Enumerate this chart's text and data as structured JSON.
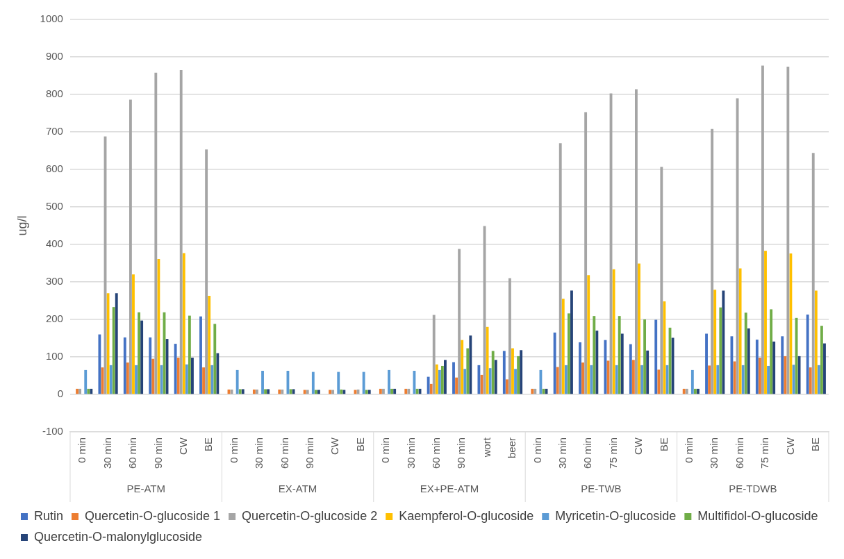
{
  "chart_data": {
    "type": "bar",
    "ylabel": "ug/l",
    "categories": [
      "0 min",
      "30 min",
      "60 min",
      "90 min",
      "CW",
      "BE",
      "0 min",
      "30 min",
      "60 min",
      "90 min",
      "CW",
      "BE",
      "0 min",
      "30 min",
      "60 min",
      "90 min",
      "wort",
      "beer",
      "0 min",
      "30 min",
      "60 min",
      "75 min",
      "CW",
      "BE",
      "0 min",
      "30 min",
      "60 min",
      "75 min",
      "CW",
      "BE"
    ],
    "annotations": [
      "PE-ATM",
      "EX-ATM",
      "EX+PE-ATM",
      "PE-TWB",
      "PE-TDWB"
    ],
    "series": [
      {
        "name": "Rutin",
        "color": "#4472c4",
        "values": [
          0,
          160,
          152,
          152,
          135,
          208,
          0,
          0,
          0,
          0,
          0,
          0,
          0,
          0,
          47,
          86,
          78,
          116,
          0,
          165,
          139,
          145,
          134,
          199,
          0,
          162,
          155,
          146,
          155,
          213
        ]
      },
      {
        "name": "Quercetin-O-glucoside 1",
        "color": "#ed7d31",
        "values": [
          15,
          72,
          85,
          95,
          98,
          72,
          13,
          13,
          13,
          12,
          12,
          12,
          15,
          15,
          28,
          45,
          52,
          40,
          15,
          73,
          85,
          90,
          92,
          66,
          15,
          77,
          88,
          98,
          102,
          72
        ]
      },
      {
        "name": "Quercetin-O-glucoside 2",
        "color": "#a5a5a5",
        "values": [
          15,
          688,
          786,
          858,
          865,
          653,
          13,
          13,
          13,
          12,
          12,
          13,
          15,
          15,
          212,
          388,
          449,
          310,
          15,
          670,
          753,
          803,
          814,
          607,
          15,
          708,
          790,
          877,
          874,
          644
        ]
      },
      {
        "name": "Kaempferol-O-glucoside",
        "color": "#ffc000",
        "values": [
          0,
          270,
          320,
          361,
          377,
          263,
          0,
          0,
          0,
          0,
          0,
          0,
          0,
          0,
          80,
          145,
          180,
          123,
          0,
          255,
          318,
          334,
          349,
          248,
          0,
          279,
          336,
          383,
          376,
          277
        ]
      },
      {
        "name": "Myricetin-O-glucoside",
        "color": "#5b9bd5",
        "values": [
          65,
          78,
          78,
          78,
          80,
          78,
          65,
          63,
          63,
          60,
          60,
          60,
          65,
          63,
          65,
          68,
          70,
          68,
          65,
          78,
          78,
          78,
          78,
          78,
          65,
          78,
          78,
          76,
          79,
          78
        ]
      },
      {
        "name": "Multifidol-O-glucoside",
        "color": "#70ad47",
        "values": [
          15,
          233,
          219,
          219,
          210,
          188,
          14,
          14,
          14,
          12,
          13,
          12,
          15,
          15,
          76,
          123,
          116,
          102,
          15,
          216,
          209,
          209,
          200,
          178,
          15,
          232,
          218,
          227,
          204,
          183
        ]
      },
      {
        "name": "Quercetin-O-malonylglucoside",
        "color": "#264478",
        "values": [
          15,
          270,
          197,
          148,
          98,
          110,
          14,
          14,
          14,
          12,
          12,
          12,
          15,
          15,
          92,
          157,
          92,
          118,
          15,
          277,
          170,
          162,
          117,
          151,
          15,
          277,
          176,
          141,
          102,
          136
        ]
      }
    ],
    "ylim": [
      -100,
      1000
    ],
    "yticks": [
      -100,
      0,
      100,
      200,
      300,
      400,
      500,
      600,
      700,
      800,
      900,
      1000
    ],
    "grid": "y",
    "legend": "bottom"
  }
}
